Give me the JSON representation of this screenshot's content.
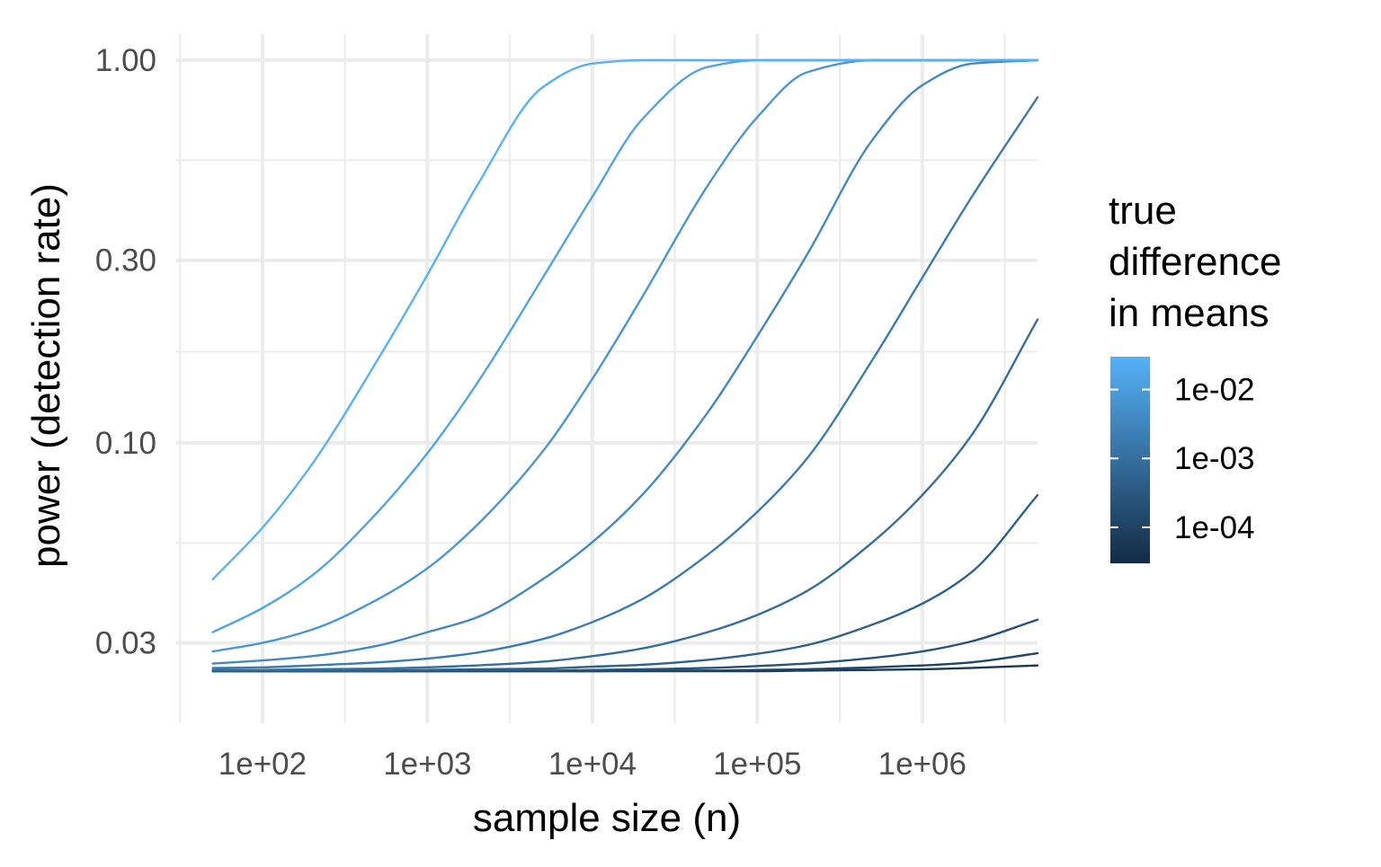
{
  "chart_data": {
    "type": "line",
    "title": "",
    "xlabel": "sample size (n)",
    "ylabel": "power (detection rate)",
    "x_scale": "log10",
    "y_scale": "log10",
    "xlim": [
      30,
      5000000
    ],
    "ylim": [
      0.0185,
      1.17
    ],
    "x_ticks": [
      {
        "value": 100,
        "label": "1e+02"
      },
      {
        "value": 1000,
        "label": "1e+03"
      },
      {
        "value": 10000,
        "label": "1e+04"
      },
      {
        "value": 100000,
        "label": "1e+05"
      },
      {
        "value": 1000000,
        "label": "1e+06"
      }
    ],
    "y_ticks": [
      {
        "value": 0.03,
        "label": "0.03"
      },
      {
        "value": 0.1,
        "label": "0.10"
      },
      {
        "value": 0.3,
        "label": "0.30"
      },
      {
        "value": 1.0,
        "label": "1.00"
      }
    ],
    "grid": true,
    "legend": {
      "title_lines": [
        "true",
        "difference",
        "in means"
      ],
      "placement": "right",
      "type": "colorbar",
      "scale": "log10",
      "range": [
        3e-05,
        0.03
      ],
      "ticks": [
        {
          "value": 0.01,
          "label": "1e-02"
        },
        {
          "value": 0.001,
          "label": "1e-03"
        },
        {
          "value": 0.0001,
          "label": "1e-04"
        }
      ],
      "color_low": "#132B43",
      "color_high": "#56B1F7"
    },
    "x_sample": [
      50,
      100,
      200,
      500,
      1000,
      2000,
      5000,
      10000,
      20000,
      50000,
      100000,
      200000,
      500000,
      1000000,
      2000000,
      5000000
    ],
    "series": [
      {
        "effect": 0.03,
        "values": [
          0.044,
          0.06,
          0.088,
          0.165,
          0.275,
          0.47,
          0.85,
          0.98,
          1.0,
          1.0,
          1.0,
          1.0,
          1.0,
          1.0,
          1.0,
          1.0
        ]
      },
      {
        "effect": 0.015,
        "values": [
          0.032,
          0.037,
          0.045,
          0.066,
          0.094,
          0.143,
          0.27,
          0.44,
          0.7,
          0.96,
          1.0,
          1.0,
          1.0,
          1.0,
          1.0,
          1.0
        ]
      },
      {
        "effect": 0.0075,
        "values": [
          0.0285,
          0.03,
          0.0325,
          0.039,
          0.047,
          0.061,
          0.095,
          0.147,
          0.24,
          0.47,
          0.71,
          0.93,
          1.0,
          1.0,
          1.0,
          1.0
        ]
      },
      {
        "effect": 0.00375,
        "values": [
          0.0265,
          0.027,
          0.0277,
          0.0295,
          0.032,
          0.035,
          0.044,
          0.055,
          0.073,
          0.12,
          0.19,
          0.31,
          0.62,
          0.86,
          0.98,
          1.0
        ]
      },
      {
        "effect": 0.0019,
        "values": [
          0.0258,
          0.0259,
          0.0262,
          0.0267,
          0.0273,
          0.0283,
          0.0307,
          0.034,
          0.039,
          0.051,
          0.066,
          0.091,
          0.165,
          0.27,
          0.44,
          0.8
        ]
      },
      {
        "effect": 0.00095,
        "values": [
          0.0255,
          0.0255,
          0.0256,
          0.0257,
          0.0259,
          0.0262,
          0.0268,
          0.0277,
          0.029,
          0.032,
          0.0355,
          0.041,
          0.055,
          0.073,
          0.105,
          0.21
        ]
      },
      {
        "effect": 0.00048,
        "values": [
          0.0254,
          0.0254,
          0.0254,
          0.0254,
          0.0255,
          0.0256,
          0.0257,
          0.026,
          0.0263,
          0.0271,
          0.0281,
          0.0296,
          0.0335,
          0.038,
          0.046,
          0.073
        ]
      },
      {
        "effect": 0.00024,
        "values": [
          0.0253,
          0.0253,
          0.0253,
          0.0253,
          0.0253,
          0.0254,
          0.0254,
          0.0255,
          0.0256,
          0.0258,
          0.0261,
          0.0265,
          0.0274,
          0.0285,
          0.0303,
          0.0345
        ]
      },
      {
        "effect": 0.00012,
        "values": [
          0.0253,
          0.0253,
          0.0253,
          0.0253,
          0.0253,
          0.0253,
          0.0253,
          0.0253,
          0.0254,
          0.0254,
          0.0255,
          0.0256,
          0.0259,
          0.0262,
          0.0267,
          0.0282
        ]
      },
      {
        "effect": 6e-05,
        "values": [
          0.0253,
          0.0253,
          0.0253,
          0.0253,
          0.0253,
          0.0253,
          0.0253,
          0.0253,
          0.0253,
          0.0253,
          0.0253,
          0.0254,
          0.0255,
          0.0256,
          0.0258,
          0.0262
        ]
      }
    ]
  }
}
